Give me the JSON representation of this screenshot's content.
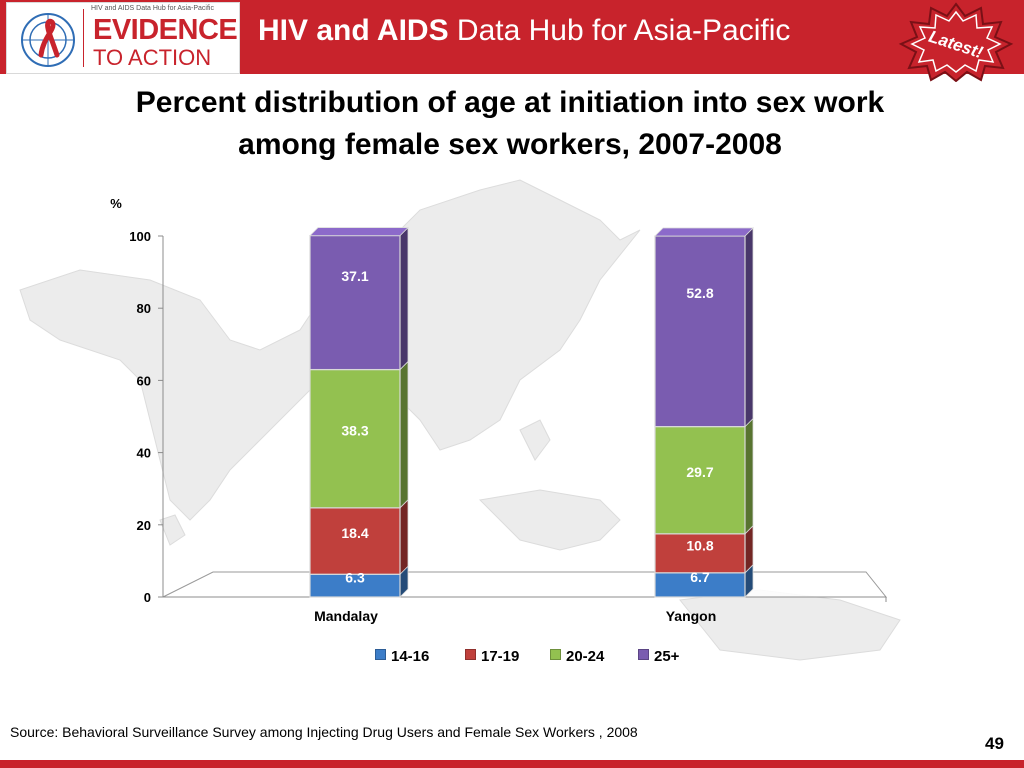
{
  "header": {
    "logo_tagline": "HIV and AIDS Data Hub for Asia-Pacific",
    "logo_line1": "EVIDENCE",
    "logo_line2": "TO ACTION",
    "title_bold": "HIV and AIDS",
    "title_rest": " Data Hub for Asia-Pacific",
    "badge": "Latest!",
    "brand_color": "#c8232c"
  },
  "slide": {
    "title_line1": "Percent distribution of age at initiation into sex work",
    "title_line2": "among female sex workers, 2007-2008",
    "source": "Source: Behavioral Surveillance Survey among Injecting Drug Users and Female Sex Workers , 2008",
    "page_number": "49"
  },
  "chart_data": {
    "type": "bar",
    "stacked": true,
    "three_d": true,
    "categories": [
      "Mandalay",
      "Yangon"
    ],
    "series": [
      {
        "name": "14-16",
        "values": [
          6.3,
          6.7
        ],
        "color": "#3c7dc8"
      },
      {
        "name": "17-19",
        "values": [
          18.4,
          10.8
        ],
        "color": "#c0403c"
      },
      {
        "name": "20-24",
        "values": [
          38.3,
          29.7
        ],
        "color": "#93c150"
      },
      {
        "name": "25+",
        "values": [
          37.1,
          52.8
        ],
        "color": "#7a5cb0"
      }
    ],
    "ylabel": "%",
    "ylim": [
      0,
      100
    ],
    "yticks": [
      0,
      20,
      40,
      60,
      80,
      100
    ],
    "grid": false,
    "legend_position": "bottom",
    "data_label_color": "#ffffff"
  }
}
